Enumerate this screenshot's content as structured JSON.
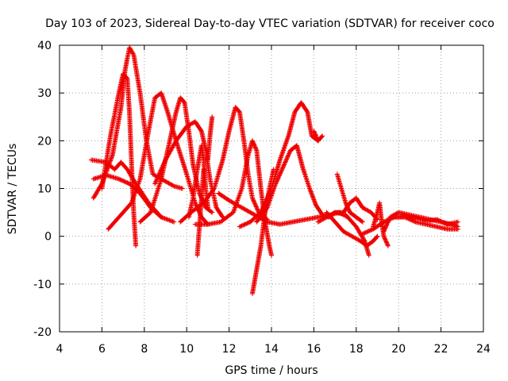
{
  "chart_data": {
    "type": "scatter",
    "title": "Day 103 of 2023, Sidereal Day-to-day VTEC variation (SDTVAR) for receiver coco",
    "xlabel": "GPS time / hours",
    "ylabel": "SDTVAR / TECUs",
    "xlim": [
      4,
      24
    ],
    "ylim": [
      -20,
      40
    ],
    "xticks": [
      4,
      6,
      8,
      10,
      12,
      14,
      16,
      18,
      20,
      22,
      24
    ],
    "yticks": [
      -20,
      -10,
      0,
      10,
      20,
      30,
      40
    ],
    "grid": true,
    "marker": "+",
    "color": "#ee0000",
    "series": [
      {
        "name": "track-1",
        "points": [
          [
            5.5,
            16
          ],
          [
            6.2,
            15.5
          ],
          [
            6.6,
            14
          ],
          [
            6.9,
            15.5
          ],
          [
            7.2,
            14
          ],
          [
            7.6,
            11
          ],
          [
            8.2,
            7
          ],
          [
            8.8,
            4
          ],
          [
            9.4,
            3
          ]
        ]
      },
      {
        "name": "track-2",
        "points": [
          [
            5.6,
            12
          ],
          [
            6.2,
            12.8
          ],
          [
            6.8,
            12
          ],
          [
            7.3,
            11
          ],
          [
            7.8,
            9
          ],
          [
            8.3,
            6
          ],
          [
            8.8,
            4
          ]
        ]
      },
      {
        "name": "track-3",
        "points": [
          [
            5.6,
            8
          ],
          [
            6.0,
            11
          ],
          [
            6.5,
            17
          ],
          [
            6.9,
            27
          ],
          [
            7.1,
            35
          ],
          [
            7.3,
            39.5
          ],
          [
            7.5,
            38
          ],
          [
            7.8,
            30
          ],
          [
            8.1,
            20
          ],
          [
            8.4,
            13
          ],
          [
            8.8,
            12
          ],
          [
            9.4,
            10.5
          ],
          [
            9.8,
            10
          ]
        ]
      },
      {
        "name": "track-4",
        "points": [
          [
            6.0,
            10
          ],
          [
            6.4,
            21
          ],
          [
            6.8,
            30
          ],
          [
            7.0,
            34
          ],
          [
            7.2,
            33
          ],
          [
            7.3,
            26
          ],
          [
            7.4,
            15
          ],
          [
            7.5,
            5
          ],
          [
            7.6,
            -2
          ]
        ]
      },
      {
        "name": "track-5",
        "points": [
          [
            6.3,
            1.5
          ],
          [
            6.8,
            4
          ],
          [
            7.4,
            7
          ],
          [
            7.8,
            12
          ],
          [
            8.2,
            22
          ],
          [
            8.5,
            29
          ],
          [
            8.8,
            30
          ],
          [
            9.1,
            26
          ],
          [
            9.5,
            20
          ],
          [
            10.0,
            13
          ],
          [
            10.4,
            7
          ],
          [
            10.7,
            4
          ],
          [
            11.0,
            2.5
          ]
        ]
      },
      {
        "name": "track-6",
        "points": [
          [
            7.8,
            3
          ],
          [
            8.3,
            5
          ],
          [
            8.8,
            12
          ],
          [
            9.2,
            20
          ],
          [
            9.5,
            26
          ],
          [
            9.7,
            29
          ],
          [
            9.9,
            28
          ],
          [
            10.1,
            22
          ],
          [
            10.3,
            15
          ],
          [
            10.6,
            9
          ],
          [
            10.9,
            6
          ],
          [
            11.2,
            5
          ]
        ]
      },
      {
        "name": "track-7",
        "points": [
          [
            8.5,
            11
          ],
          [
            9.0,
            16
          ],
          [
            9.5,
            20
          ],
          [
            10.0,
            23
          ],
          [
            10.4,
            24
          ],
          [
            10.7,
            22
          ],
          [
            10.9,
            18
          ],
          [
            11.1,
            12
          ],
          [
            11.4,
            6
          ],
          [
            11.7,
            4
          ]
        ]
      },
      {
        "name": "track-8",
        "points": [
          [
            10.1,
            4
          ],
          [
            10.3,
            8
          ],
          [
            10.5,
            14
          ],
          [
            10.7,
            19
          ],
          [
            10.8,
            16
          ],
          [
            10.9,
            10
          ],
          [
            11.0,
            6
          ]
        ]
      },
      {
        "name": "track-9",
        "points": [
          [
            10.5,
            -4
          ],
          [
            10.6,
            2
          ],
          [
            10.7,
            8
          ],
          [
            10.8,
            14
          ]
        ]
      },
      {
        "name": "track-10",
        "points": [
          [
            11.0,
            16
          ],
          [
            11.1,
            21
          ],
          [
            11.2,
            25
          ]
        ]
      },
      {
        "name": "track-11",
        "points": [
          [
            9.7,
            3
          ],
          [
            10.2,
            5
          ],
          [
            10.8,
            7
          ],
          [
            11.3,
            10
          ],
          [
            11.7,
            16
          ],
          [
            12.0,
            22
          ],
          [
            12.3,
            27
          ],
          [
            12.5,
            26
          ],
          [
            12.7,
            20
          ],
          [
            12.9,
            13
          ],
          [
            13.1,
            8
          ],
          [
            13.4,
            5
          ],
          [
            13.8,
            3.5
          ]
        ]
      },
      {
        "name": "track-12",
        "points": [
          [
            10.4,
            2.5
          ],
          [
            11.0,
            2.5
          ],
          [
            11.6,
            3
          ],
          [
            12.2,
            5
          ],
          [
            12.6,
            10
          ],
          [
            12.9,
            17
          ],
          [
            13.1,
            20
          ],
          [
            13.3,
            18
          ],
          [
            13.5,
            10
          ],
          [
            13.7,
            3
          ],
          [
            13.9,
            -2
          ],
          [
            14.0,
            -4
          ]
        ]
      },
      {
        "name": "track-13",
        "points": [
          [
            13.1,
            -12
          ],
          [
            13.3,
            -7
          ],
          [
            13.5,
            -2
          ],
          [
            13.7,
            5
          ],
          [
            13.9,
            10
          ],
          [
            14.1,
            14
          ]
        ]
      },
      {
        "name": "track-14",
        "points": [
          [
            11.5,
            9
          ],
          [
            12.0,
            7.5
          ],
          [
            12.6,
            6
          ],
          [
            13.2,
            4.5
          ],
          [
            13.8,
            3
          ],
          [
            14.4,
            2.5
          ],
          [
            15.0,
            3
          ],
          [
            15.6,
            3.5
          ],
          [
            16.2,
            4
          ],
          [
            16.8,
            4.5
          ],
          [
            17.2,
            5
          ],
          [
            17.6,
            4
          ]
        ]
      },
      {
        "name": "track-15",
        "points": [
          [
            12.5,
            2
          ],
          [
            13.0,
            3
          ],
          [
            13.5,
            5
          ],
          [
            14.0,
            10
          ],
          [
            14.4,
            16
          ],
          [
            14.8,
            21
          ],
          [
            15.1,
            26
          ],
          [
            15.4,
            28
          ],
          [
            15.7,
            26
          ],
          [
            15.9,
            21
          ],
          [
            16.2,
            20
          ]
        ]
      },
      {
        "name": "track-16",
        "points": [
          [
            13.3,
            3
          ],
          [
            13.8,
            6
          ],
          [
            14.2,
            11
          ],
          [
            14.6,
            15
          ],
          [
            14.9,
            18
          ],
          [
            15.2,
            19
          ],
          [
            15.5,
            14
          ],
          [
            15.8,
            10
          ],
          [
            16.1,
            6.5
          ],
          [
            16.4,
            4.5
          ],
          [
            16.7,
            4
          ],
          [
            17.0,
            5
          ],
          [
            17.5,
            4.5
          ],
          [
            18.0,
            2
          ],
          [
            18.4,
            -1
          ],
          [
            18.6,
            -4
          ]
        ]
      },
      {
        "name": "track-17",
        "points": [
          [
            16.0,
            22
          ],
          [
            16.2,
            20
          ],
          [
            16.4,
            21
          ]
        ]
      },
      {
        "name": "track-18",
        "points": [
          [
            16.2,
            3
          ],
          [
            16.6,
            4
          ],
          [
            17.0,
            5
          ],
          [
            17.4,
            5
          ],
          [
            17.7,
            7
          ],
          [
            18.0,
            8
          ],
          [
            18.3,
            6
          ],
          [
            18.7,
            5
          ],
          [
            19.0,
            3.5
          ]
        ]
      },
      {
        "name": "track-19",
        "points": [
          [
            17.1,
            13
          ],
          [
            17.3,
            10
          ],
          [
            17.5,
            7
          ],
          [
            17.7,
            5
          ],
          [
            18.0,
            4
          ],
          [
            18.3,
            3
          ]
        ]
      },
      {
        "name": "track-20",
        "points": [
          [
            16.6,
            5
          ],
          [
            17.0,
            3
          ],
          [
            17.4,
            1
          ],
          [
            17.8,
            0
          ],
          [
            18.2,
            -1
          ],
          [
            18.5,
            -2
          ],
          [
            18.8,
            -1
          ],
          [
            19.0,
            0
          ]
        ]
      },
      {
        "name": "track-21",
        "points": [
          [
            18.8,
            2
          ],
          [
            19.0,
            5
          ],
          [
            19.1,
            7
          ],
          [
            19.2,
            3
          ],
          [
            19.3,
            0
          ],
          [
            19.5,
            -2
          ]
        ]
      },
      {
        "name": "track-22",
        "points": [
          [
            18.3,
            0.5
          ],
          [
            18.8,
            1.5
          ],
          [
            19.3,
            3
          ],
          [
            19.8,
            4
          ],
          [
            20.3,
            4
          ],
          [
            20.8,
            3
          ],
          [
            21.3,
            2.5
          ],
          [
            21.8,
            2
          ],
          [
            22.3,
            1.5
          ],
          [
            22.8,
            1.5
          ]
        ]
      },
      {
        "name": "track-23",
        "points": [
          [
            19.3,
            1
          ],
          [
            19.6,
            4
          ],
          [
            20.0,
            5
          ],
          [
            20.5,
            4.5
          ],
          [
            21.0,
            4
          ],
          [
            21.5,
            3.5
          ],
          [
            22.0,
            3
          ],
          [
            22.5,
            2.5
          ],
          [
            22.8,
            2
          ]
        ]
      },
      {
        "name": "track-24",
        "points": [
          [
            19.8,
            4
          ],
          [
            20.3,
            4.2
          ],
          [
            20.8,
            3.8
          ],
          [
            21.3,
            3.2
          ],
          [
            21.8,
            3.5
          ],
          [
            22.3,
            2.5
          ],
          [
            22.8,
            3
          ]
        ]
      }
    ]
  }
}
